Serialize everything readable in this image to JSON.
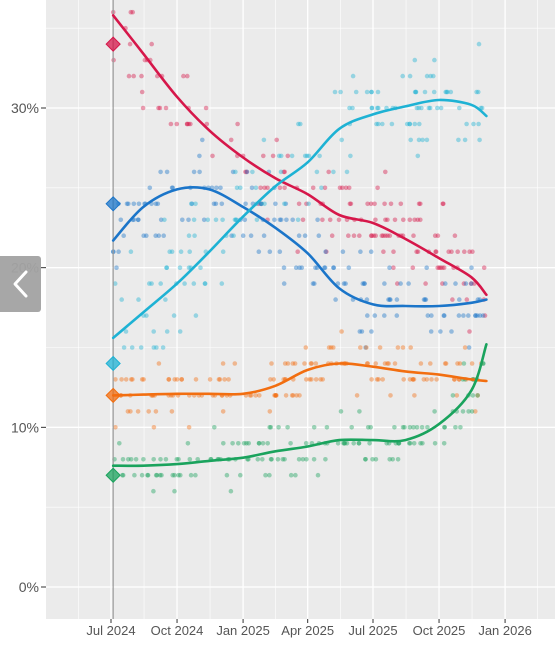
{
  "chart_data": {
    "type": "scatter",
    "title": "",
    "xlabel": "",
    "ylabel": "",
    "ylim": [
      -2,
      37
    ],
    "xlim": [
      "2024-04-01",
      "2026-04-15"
    ],
    "grid": true,
    "background": "#ebebeb",
    "y_ticks": [
      {
        "value": 0,
        "label": "0%"
      },
      {
        "value": 10,
        "label": "10%"
      },
      {
        "value": 20,
        "label": "20%"
      },
      {
        "value": 30,
        "label": "30%"
      }
    ],
    "x_ticks": [
      {
        "value": "2024-07-01",
        "label": "Jul 2024"
      },
      {
        "value": "2024-10-01",
        "label": "Oct 2024"
      },
      {
        "value": "2025-01-01",
        "label": "Jan 2025"
      },
      {
        "value": "2025-04-01",
        "label": "Apr 2025"
      },
      {
        "value": "2025-07-01",
        "label": "Jul 2025"
      },
      {
        "value": "2025-10-01",
        "label": "Oct 2025"
      },
      {
        "value": "2026-01-01",
        "label": "Jan 2026"
      },
      {
        "value": "2026-04-01",
        "label": "Ap"
      }
    ],
    "reference_line": {
      "x": "2024-07-04"
    },
    "series": [
      {
        "color": "#d6174a",
        "start_marker": {
          "x": "2024-07-04",
          "y": 34
        },
        "trend": [
          [
            "2024-07-04",
            35.8
          ],
          [
            "2024-08-15",
            33.4
          ],
          [
            "2024-10-01",
            30.7
          ],
          [
            "2024-11-15",
            28.6
          ],
          [
            "2025-01-01",
            26.9
          ],
          [
            "2025-02-15",
            25.6
          ],
          [
            "2025-04-01",
            24.6
          ],
          [
            "2025-05-15",
            23.3
          ],
          [
            "2025-07-01",
            22.8
          ],
          [
            "2025-08-15",
            21.8
          ],
          [
            "2025-10-01",
            20.6
          ],
          [
            "2025-11-15",
            19.4
          ],
          [
            "2025-12-06",
            18.3
          ]
        ]
      },
      {
        "color": "#1b75c9",
        "start_marker": {
          "x": "2024-07-04",
          "y": 24
        },
        "trend": [
          [
            "2024-07-04",
            21.7
          ],
          [
            "2024-08-15",
            23.8
          ],
          [
            "2024-10-01",
            24.9
          ],
          [
            "2024-11-15",
            24.9
          ],
          [
            "2025-01-01",
            23.8
          ],
          [
            "2025-02-15",
            22.5
          ],
          [
            "2025-04-01",
            20.9
          ],
          [
            "2025-05-15",
            18.7
          ],
          [
            "2025-07-01",
            17.7
          ],
          [
            "2025-08-15",
            17.6
          ],
          [
            "2025-10-01",
            17.6
          ],
          [
            "2025-11-15",
            17.8
          ],
          [
            "2025-12-06",
            18.0
          ]
        ]
      },
      {
        "color": "#1eb2d4",
        "start_marker": {
          "x": "2024-07-04",
          "y": 14
        },
        "trend": [
          [
            "2024-07-04",
            15.6
          ],
          [
            "2024-08-15",
            17.2
          ],
          [
            "2024-10-01",
            19.0
          ],
          [
            "2024-11-15",
            21.0
          ],
          [
            "2025-01-01",
            23.2
          ],
          [
            "2025-02-15",
            25.1
          ],
          [
            "2025-04-01",
            26.6
          ],
          [
            "2025-05-15",
            28.7
          ],
          [
            "2025-07-01",
            29.6
          ],
          [
            "2025-08-15",
            30.1
          ],
          [
            "2025-10-01",
            30.5
          ],
          [
            "2025-11-15",
            30.2
          ],
          [
            "2025-12-06",
            29.5
          ]
        ]
      },
      {
        "color": "#f26e10",
        "start_marker": {
          "x": "2024-07-04",
          "y": 12
        },
        "trend": [
          [
            "2024-07-04",
            12.0
          ],
          [
            "2024-08-15",
            12.05
          ],
          [
            "2024-10-01",
            12.1
          ],
          [
            "2024-11-15",
            12.1
          ],
          [
            "2025-01-01",
            12.1
          ],
          [
            "2025-02-15",
            12.6
          ],
          [
            "2025-04-01",
            13.6
          ],
          [
            "2025-05-15",
            14.0
          ],
          [
            "2025-07-01",
            13.8
          ],
          [
            "2025-08-15",
            13.5
          ],
          [
            "2025-10-01",
            13.3
          ],
          [
            "2025-11-15",
            13.0
          ],
          [
            "2025-12-06",
            12.9
          ]
        ]
      },
      {
        "color": "#1aa35d",
        "start_marker": {
          "x": "2024-07-04",
          "y": 7
        },
        "trend": [
          [
            "2024-07-04",
            7.6
          ],
          [
            "2024-08-15",
            7.6
          ],
          [
            "2024-10-01",
            7.7
          ],
          [
            "2024-11-15",
            7.9
          ],
          [
            "2025-01-01",
            8.1
          ],
          [
            "2025-02-15",
            8.5
          ],
          [
            "2025-04-01",
            8.8
          ],
          [
            "2025-05-15",
            9.2
          ],
          [
            "2025-07-01",
            9.2
          ],
          [
            "2025-08-15",
            9.2
          ],
          [
            "2025-10-01",
            10.2
          ],
          [
            "2025-11-15",
            12.3
          ],
          [
            "2025-12-06",
            15.2
          ]
        ]
      }
    ]
  },
  "navigation": {
    "prev_icon": "chevron-left-icon"
  }
}
